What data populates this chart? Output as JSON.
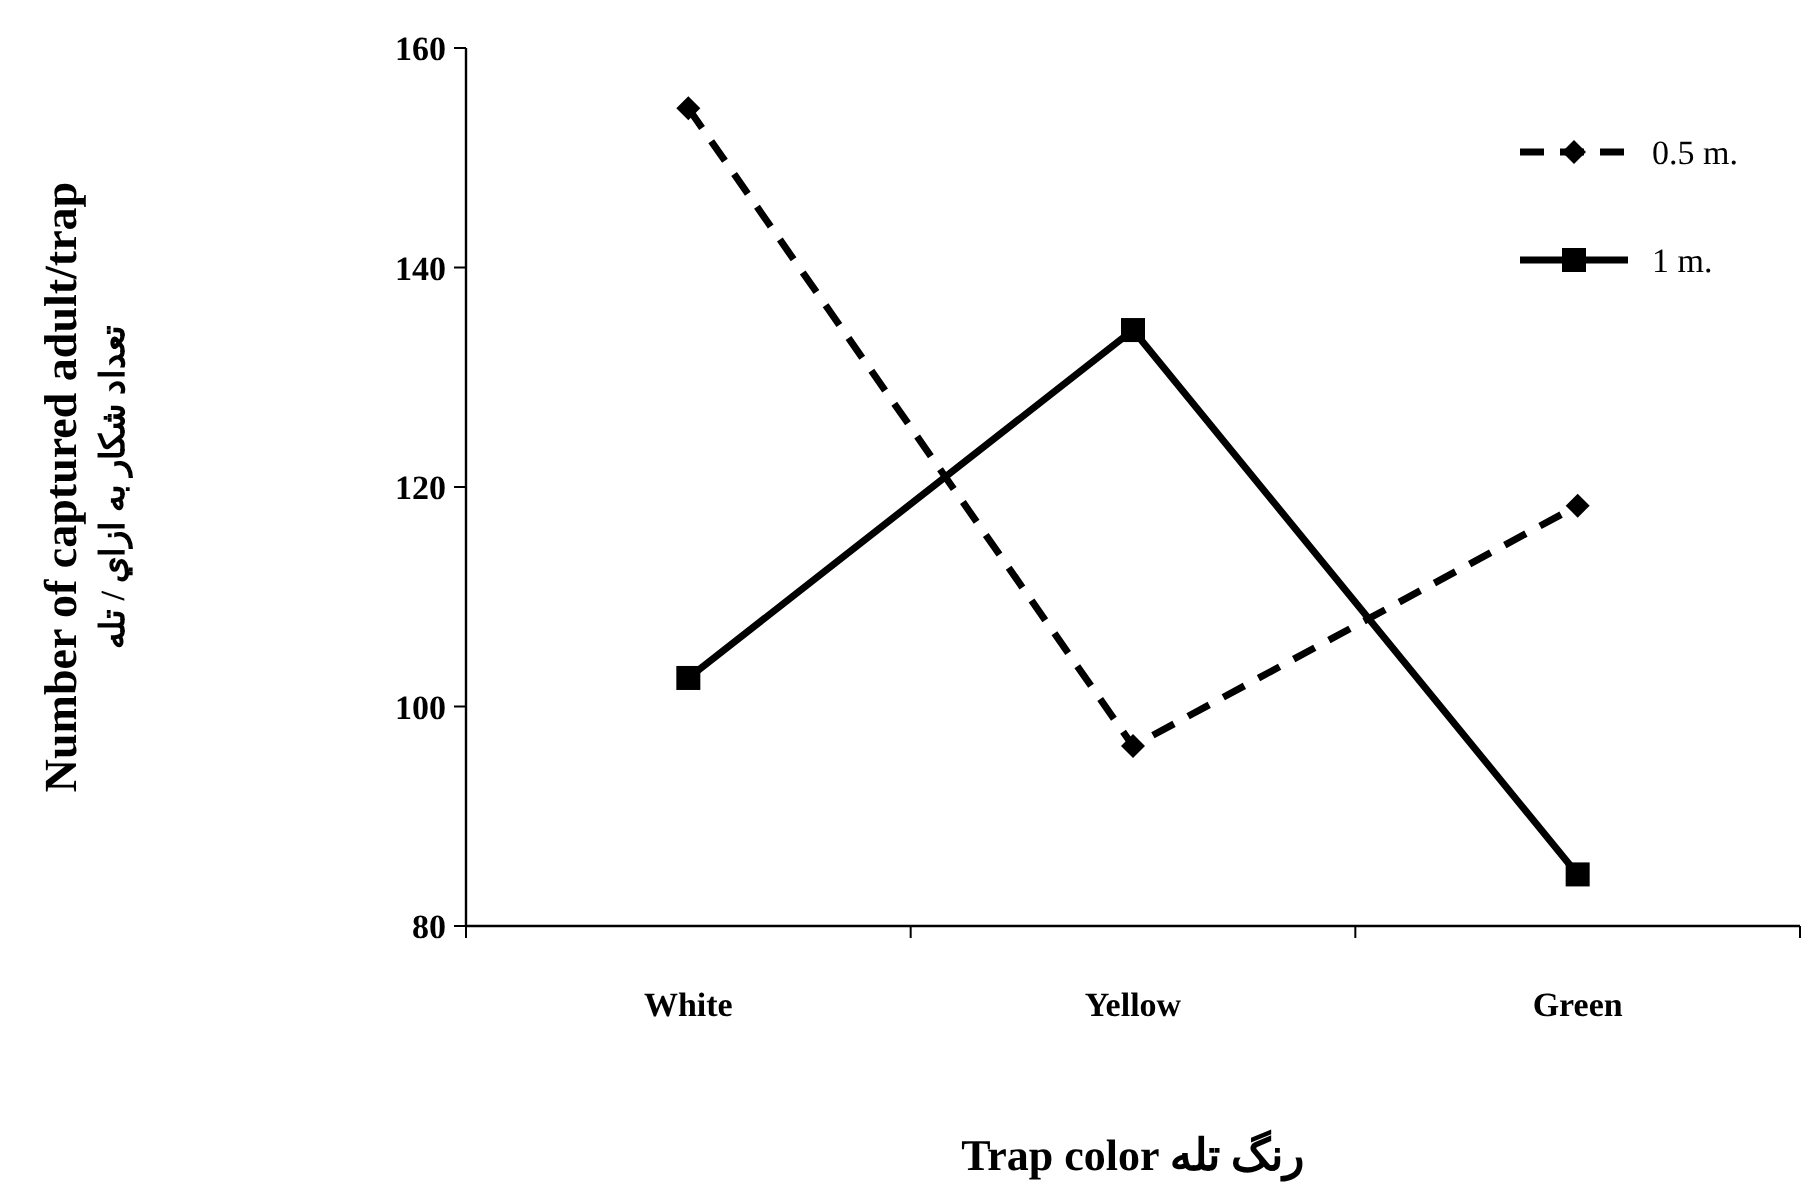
{
  "chart_data": {
    "type": "line",
    "xlabel": "Trap  color رنگ تله",
    "ylabel": [
      "Number of captured adult/trap",
      "تعداد شکار به ازاي / تله"
    ],
    "categories": [
      "White",
      "Yellow",
      "Green"
    ],
    "series": [
      {
        "name": "0.5 m.",
        "color": "#000000",
        "values": [
          154.5,
          96.4,
          118.3
        ],
        "line_style": "dashed",
        "marker": "diamond"
      },
      {
        "name": "1 m.",
        "color": "#000000",
        "values": [
          102.6,
          134.3,
          84.7
        ],
        "line_style": "solid",
        "marker": "square"
      }
    ],
    "ylim": [
      80,
      160
    ],
    "yticks": [
      80,
      100,
      120,
      140,
      160
    ],
    "grid": false,
    "legend": "top right"
  }
}
